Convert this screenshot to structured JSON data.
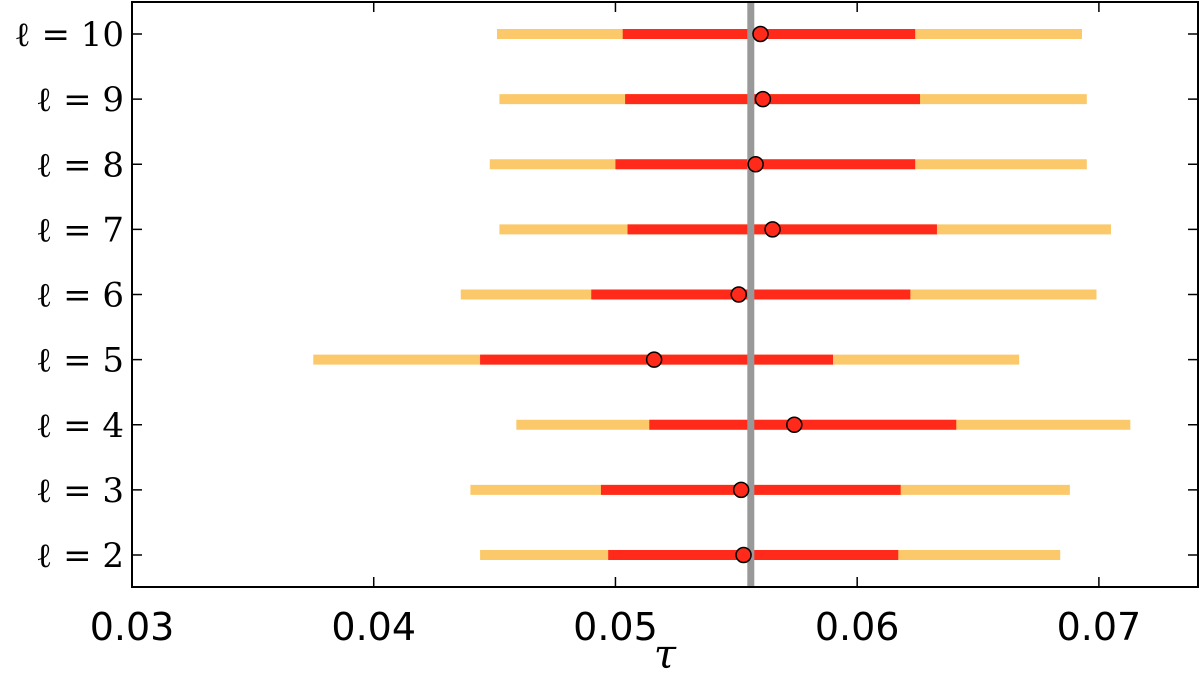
{
  "chart_data": {
    "type": "errorbar",
    "xlabel": "τ",
    "xlim": [
      0.03,
      0.0741
    ],
    "x_ticks": [
      0.03,
      0.04,
      0.05,
      0.06,
      0.07
    ],
    "x_tick_labels": [
      "0.03",
      "0.04",
      "0.05",
      "0.06",
      "0.07"
    ],
    "reference_value": 0.0556,
    "reference_color": "#999999",
    "outer_color": "#fbc96a",
    "inner_color": "#ff2a1a",
    "point_color": "#ff2a1a",
    "grid": false,
    "legend": "none",
    "rows": [
      {
        "label": "ℓ = 10",
        "center": 0.056,
        "inner": [
          0.0503,
          0.0624
        ],
        "outer": [
          0.0451,
          0.0693
        ]
      },
      {
        "label": "ℓ = 9",
        "center": 0.0561,
        "inner": [
          0.0504,
          0.0626
        ],
        "outer": [
          0.0452,
          0.0695
        ]
      },
      {
        "label": "ℓ = 8",
        "center": 0.0558,
        "inner": [
          0.05,
          0.0624
        ],
        "outer": [
          0.0448,
          0.0695
        ]
      },
      {
        "label": "ℓ = 7",
        "center": 0.0565,
        "inner": [
          0.0505,
          0.0633
        ],
        "outer": [
          0.0452,
          0.0705
        ]
      },
      {
        "label": "ℓ = 6",
        "center": 0.0551,
        "inner": [
          0.049,
          0.0622
        ],
        "outer": [
          0.0436,
          0.0699
        ]
      },
      {
        "label": "ℓ = 5",
        "center": 0.0516,
        "inner": [
          0.0444,
          0.059
        ],
        "outer": [
          0.0375,
          0.0667
        ]
      },
      {
        "label": "ℓ = 4",
        "center": 0.0574,
        "inner": [
          0.0514,
          0.0641
        ],
        "outer": [
          0.0459,
          0.0713
        ]
      },
      {
        "label": "ℓ = 3",
        "center": 0.0552,
        "inner": [
          0.0494,
          0.0618
        ],
        "outer": [
          0.044,
          0.0688
        ]
      },
      {
        "label": "ℓ = 2",
        "center": 0.0553,
        "inner": [
          0.0497,
          0.0617
        ],
        "outer": [
          0.0444,
          0.0684
        ]
      }
    ]
  }
}
